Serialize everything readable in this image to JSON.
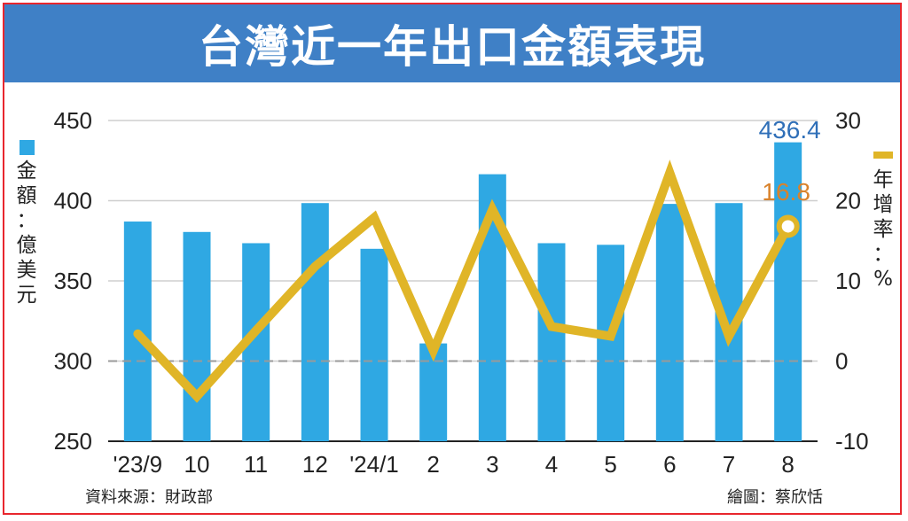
{
  "title": "台灣近一年出口金額表現",
  "chart_data": {
    "type": "bar+line",
    "categories": [
      "'23/9",
      "10",
      "11",
      "12",
      "'24/1",
      "2",
      "3",
      "4",
      "5",
      "6",
      "7",
      "8"
    ],
    "series": [
      {
        "name": "金額：億美元",
        "type": "bar",
        "axis": "left",
        "color": "#2fa8e3",
        "values": [
          387,
          380.5,
          373.5,
          398.5,
          370,
          311,
          416.5,
          373.5,
          372.5,
          398,
          398.5,
          436.4
        ]
      },
      {
        "name": "年增率：%",
        "type": "line",
        "axis": "right",
        "color": "#e0b527",
        "values": [
          3.4,
          -4.4,
          3.8,
          11.8,
          17.9,
          1.3,
          18.9,
          4.3,
          3.1,
          23.5,
          3.1,
          16.8
        ]
      }
    ],
    "left_axis": {
      "label": "金額：億美元",
      "range": [
        250,
        450
      ],
      "ticks": [
        "250",
        "300",
        "350",
        "400",
        "450"
      ]
    },
    "right_axis": {
      "label": "年增率：%",
      "range": [
        -10,
        30
      ],
      "ticks": [
        "-10",
        "0",
        "10",
        "20",
        "30"
      ]
    },
    "annotations": {
      "last_bar_label": "436.4",
      "last_point_label": "16.8"
    },
    "grid": true
  },
  "footer": {
    "source": "資料來源：財政部",
    "credit": "繪圖：蔡欣恬"
  }
}
